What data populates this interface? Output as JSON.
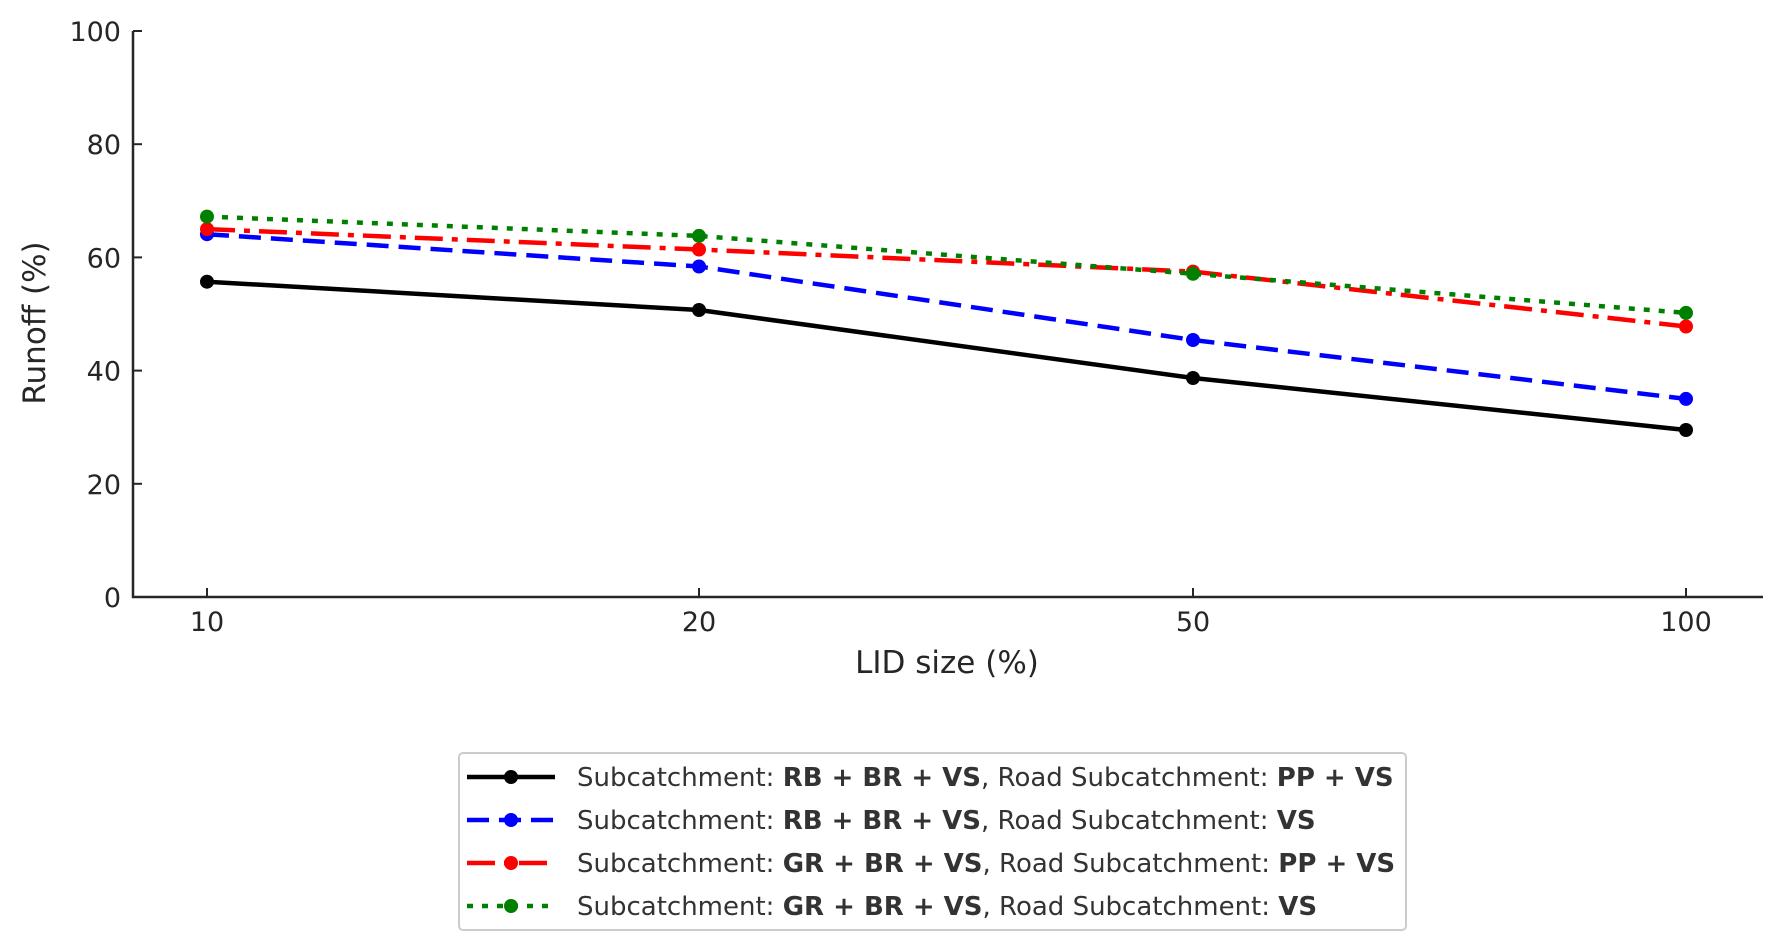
{
  "chart_data": {
    "type": "line",
    "title": "",
    "xlabel": "LID size (%)",
    "ylabel": "Runoff (%)",
    "categories": [
      "10",
      "20",
      "50",
      "100"
    ],
    "ylim": [
      0,
      100
    ],
    "yticks": [
      "0",
      "20",
      "40",
      "60",
      "80",
      "100"
    ],
    "ytick_values": [
      0,
      20,
      40,
      60,
      80,
      100
    ],
    "grid": false,
    "legend_position": "bottom-center",
    "series": [
      {
        "name": "Subcatchment: RB + BR + VS, Road Subcatchment: PP + VS",
        "legend_parts": [
          {
            "text": "Subcatchment: ",
            "bold": false
          },
          {
            "text": "RB + BR + VS",
            "bold": true
          },
          {
            "text": ", Road Subcatchment: ",
            "bold": false
          },
          {
            "text": "PP + VS",
            "bold": true
          }
        ],
        "color": "#000000",
        "linestyle": "solid",
        "values": [
          55.7,
          50.7,
          38.7,
          29.5
        ]
      },
      {
        "name": "Subcatchment: RB + BR + VS, Road Subcatchment: VS",
        "legend_parts": [
          {
            "text": "Subcatchment: ",
            "bold": false
          },
          {
            "text": "RB + BR + VS",
            "bold": true
          },
          {
            "text": ", Road Subcatchment: ",
            "bold": false
          },
          {
            "text": "VS",
            "bold": true
          }
        ],
        "color": "#0000ff",
        "linestyle": "dashed",
        "values": [
          64.1,
          58.4,
          45.4,
          35.0
        ]
      },
      {
        "name": "Subcatchment: GR + BR + VS, Road Subcatchment: PP + VS",
        "legend_parts": [
          {
            "text": "Subcatchment: ",
            "bold": false
          },
          {
            "text": "GR + BR + VS",
            "bold": true
          },
          {
            "text": ", Road Subcatchment: ",
            "bold": false
          },
          {
            "text": "PP + VS",
            "bold": true
          }
        ],
        "color": "#ff0000",
        "linestyle": "dashdot",
        "values": [
          65.0,
          61.4,
          57.5,
          47.8
        ]
      },
      {
        "name": "Subcatchment: GR + BR + VS, Road Subcatchment: VS",
        "legend_parts": [
          {
            "text": "Subcatchment: ",
            "bold": false
          },
          {
            "text": "GR + BR + VS",
            "bold": true
          },
          {
            "text": ", Road Subcatchment: ",
            "bold": false
          },
          {
            "text": "VS",
            "bold": true
          }
        ],
        "color": "#008000",
        "linestyle": "dotted",
        "values": [
          67.2,
          63.8,
          57.1,
          50.2
        ]
      }
    ]
  }
}
